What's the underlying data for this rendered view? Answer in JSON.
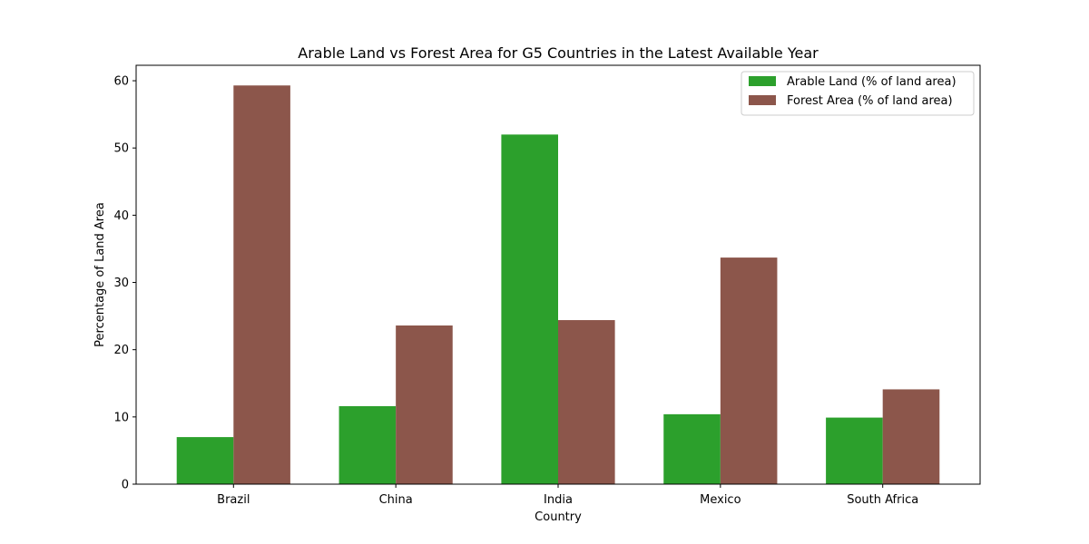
{
  "chart_data": {
    "type": "bar",
    "title": "Arable Land vs Forest Area for G5 Countries in the Latest Available Year",
    "xlabel": "Country",
    "ylabel": "Percentage of Land Area",
    "categories": [
      "Brazil",
      "China",
      "India",
      "Mexico",
      "South Africa"
    ],
    "series": [
      {
        "name": "Arable Land (% of land area)",
        "color": "#2ca02c",
        "values": [
          7.0,
          11.6,
          52.0,
          10.4,
          9.9
        ]
      },
      {
        "name": "Forest Area (% of land area)",
        "color": "#8c564b",
        "values": [
          59.3,
          23.6,
          24.4,
          33.7,
          14.1
        ]
      }
    ],
    "ylim": [
      0,
      62.3
    ],
    "yticks": [
      0,
      10,
      20,
      30,
      40,
      50,
      60
    ],
    "grid": false,
    "legend": "top-right"
  }
}
